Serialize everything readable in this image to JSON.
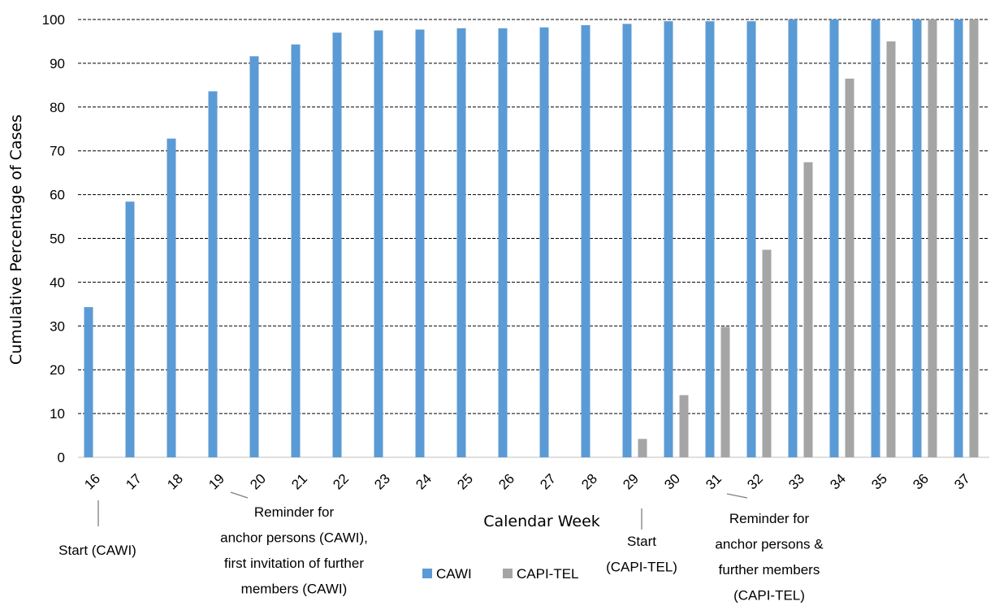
{
  "chart_data": {
    "type": "bar",
    "title": "",
    "xlabel": "Calendar Week",
    "ylabel": "Cumulative Percentage of Cases",
    "ylim": [
      0,
      100
    ],
    "yticks": [
      "0",
      "10",
      "20",
      "30",
      "40",
      "50",
      "60",
      "70",
      "80",
      "90",
      "100"
    ],
    "categories": [
      "16",
      "17",
      "18",
      "19",
      "20",
      "21",
      "22",
      "23",
      "24",
      "25",
      "26",
      "27",
      "28",
      "29",
      "30",
      "31",
      "32",
      "33",
      "34",
      "35",
      "36",
      "37"
    ],
    "series": [
      {
        "name": "CAWI",
        "color": "#5b9bd5",
        "values": [
          34.3,
          58.4,
          72.8,
          83.6,
          91.6,
          94.3,
          97.0,
          97.5,
          97.7,
          98.0,
          98.0,
          98.2,
          98.7,
          99.0,
          99.6,
          99.6,
          99.6,
          100,
          100,
          100,
          100,
          100
        ]
      },
      {
        "name": "CAPI-TEL",
        "color": "#a5a5a5",
        "values": [
          null,
          null,
          null,
          null,
          null,
          null,
          null,
          null,
          null,
          null,
          null,
          null,
          null,
          4.2,
          14.2,
          29.8,
          47.4,
          67.4,
          86.5,
          95.0,
          100,
          100
        ]
      }
    ],
    "grid": true,
    "legend_position": "bottom",
    "annotations": [
      {
        "category": "16",
        "lines": [
          "Start (CAWI)"
        ]
      },
      {
        "category": "19",
        "lines": [
          "Reminder for",
          "anchor persons (CAWI),",
          "first invitation of further",
          "members (CAWI)"
        ]
      },
      {
        "category": "29",
        "lines": [
          "Start",
          "(CAPI-TEL)"
        ]
      },
      {
        "category": "31",
        "lines": [
          "Reminder for",
          "anchor persons &",
          "further members",
          "(CAPI-TEL)"
        ]
      }
    ]
  }
}
